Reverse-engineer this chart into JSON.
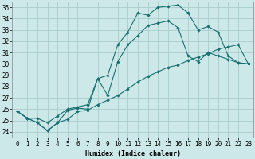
{
  "xlabel": "Humidex (Indice chaleur)",
  "background_color": "#cce8e8",
  "grid_color": "#aacccc",
  "line_color": "#1a7070",
  "xlim": [
    -0.5,
    23.5
  ],
  "ylim": [
    23.5,
    35.5
  ],
  "yticks": [
    24,
    25,
    26,
    27,
    28,
    29,
    30,
    31,
    32,
    33,
    34,
    35
  ],
  "xticks": [
    0,
    1,
    2,
    3,
    4,
    5,
    6,
    7,
    8,
    9,
    10,
    11,
    12,
    13,
    14,
    15,
    16,
    17,
    18,
    19,
    20,
    21,
    22,
    23
  ],
  "line1_x": [
    0,
    1,
    2,
    3,
    4,
    5,
    6,
    7,
    8,
    9,
    10,
    11,
    12,
    13,
    14,
    15,
    16,
    17,
    18,
    19,
    20,
    21,
    22,
    23
  ],
  "line1_y": [
    25.8,
    25.2,
    24.8,
    24.1,
    24.8,
    25.9,
    26.1,
    26.0,
    28.7,
    29.0,
    31.7,
    32.8,
    34.5,
    34.3,
    35.0,
    35.1,
    35.2,
    34.5,
    33.0,
    33.3,
    32.8,
    30.7,
    30.1,
    30.0
  ],
  "line2_x": [
    0,
    1,
    2,
    3,
    4,
    5,
    6,
    7,
    8,
    9,
    10,
    11,
    12,
    13,
    14,
    15,
    16,
    17,
    18,
    19,
    20,
    21,
    22,
    23
  ],
  "line2_y": [
    25.8,
    25.2,
    25.2,
    24.8,
    25.4,
    26.0,
    26.2,
    26.4,
    28.7,
    27.2,
    30.2,
    31.7,
    32.5,
    33.4,
    33.6,
    33.8,
    33.2,
    30.7,
    30.2,
    31.0,
    30.7,
    30.4,
    30.1,
    30.0
  ],
  "line3_x": [
    0,
    1,
    2,
    3,
    4,
    5,
    6,
    7,
    8,
    9,
    10,
    11,
    12,
    13,
    14,
    15,
    16,
    17,
    18,
    19,
    20,
    21,
    22,
    23
  ],
  "line3_y": [
    25.8,
    25.2,
    24.8,
    24.1,
    24.8,
    25.1,
    25.8,
    25.9,
    26.4,
    26.8,
    27.2,
    27.8,
    28.4,
    28.9,
    29.3,
    29.7,
    29.9,
    30.3,
    30.6,
    30.9,
    31.3,
    31.5,
    31.7,
    30.0
  ]
}
